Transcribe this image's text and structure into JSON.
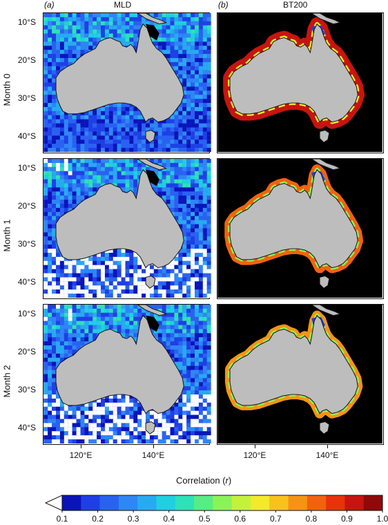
{
  "panel_labels": {
    "a": "(a)",
    "b": "(b)"
  },
  "columns": [
    "MLD",
    "BT200"
  ],
  "rows": [
    "Month 0",
    "Month 1",
    "Month 2"
  ],
  "lat_ticks": [
    "10°S",
    "20°S",
    "30°S",
    "40°S"
  ],
  "lon_ticks": [
    "120°E",
    "140°E"
  ],
  "colorbar": {
    "title_prefix": "Correlation (",
    "title_var": "r",
    "title_suffix": ")",
    "ticks": [
      "0.1",
      "0.2",
      "0.3",
      "0.4",
      "0.5",
      "0.6",
      "0.7",
      "0.8",
      "0.9",
      "1.0"
    ],
    "colors": [
      "#0a14b8",
      "#1f3fe6",
      "#2a62f0",
      "#2f86f4",
      "#27abf0",
      "#1fd0e0",
      "#2de2b8",
      "#58ec84",
      "#8cf25a",
      "#c4f23a",
      "#f2ea2a",
      "#f7c21c",
      "#f59414",
      "#f2620e",
      "#e8320c",
      "#c81410",
      "#8e0a08"
    ],
    "extend": "below"
  },
  "colors": {
    "land": "#bdbdbd",
    "ocean_black": "#000000",
    "ocean_white": "#ffffff"
  }
}
